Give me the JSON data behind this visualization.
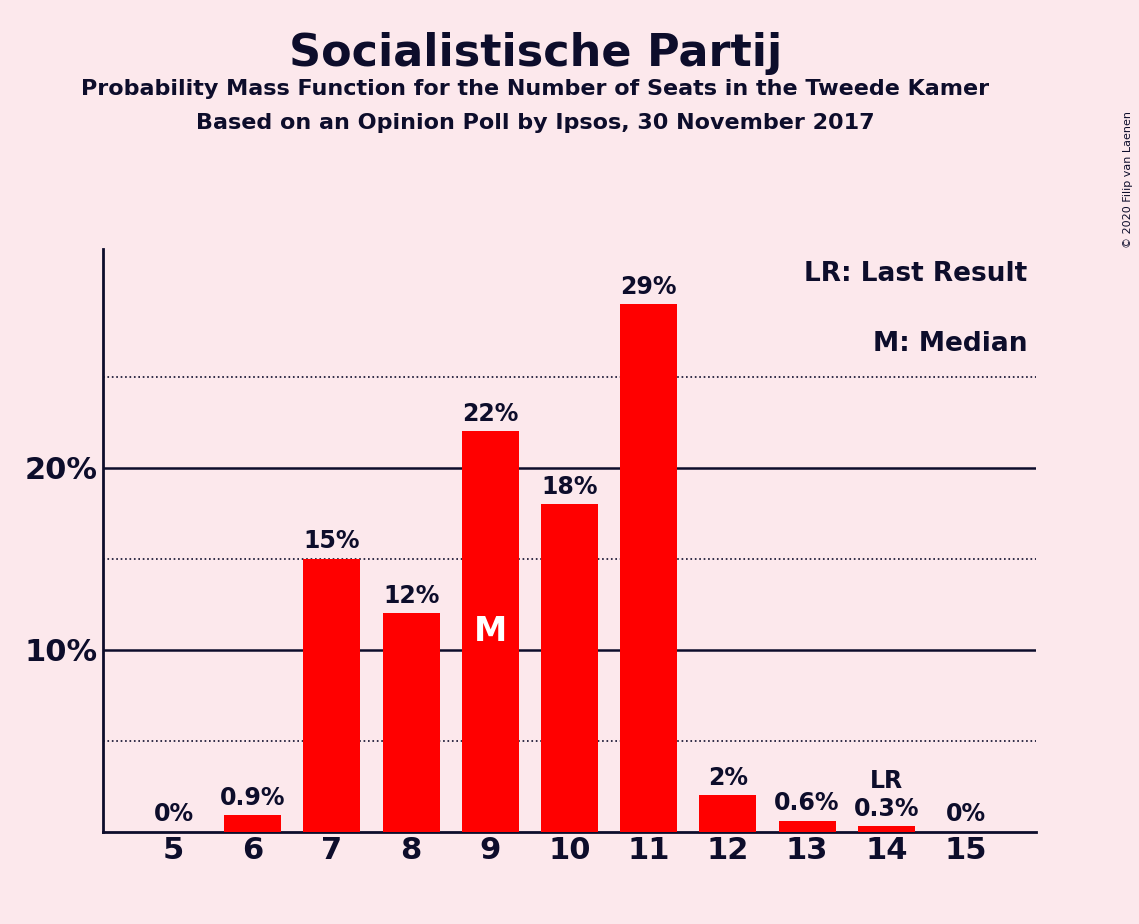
{
  "title": "Socialistische Partij",
  "subtitle1": "Probability Mass Function for the Number of Seats in the Tweede Kamer",
  "subtitle2": "Based on an Opinion Poll by Ipsos, 30 November 2017",
  "copyright": "© 2020 Filip van Laenen",
  "categories": [
    5,
    6,
    7,
    8,
    9,
    10,
    11,
    12,
    13,
    14,
    15
  ],
  "values": [
    0.0,
    0.9,
    15.0,
    12.0,
    22.0,
    18.0,
    29.0,
    2.0,
    0.6,
    0.3,
    0.0
  ],
  "labels": [
    "0%",
    "0.9%",
    "15%",
    "12%",
    "22%",
    "18%",
    "29%",
    "2%",
    "0.6%",
    "0.3%",
    "0%"
  ],
  "bar_color": "#ff0000",
  "background_color": "#fce8ec",
  "text_color": "#0d0d2b",
  "yticks": [
    0,
    10,
    20
  ],
  "ytick_labels": [
    "",
    "10%",
    "20%"
  ],
  "dotted_lines": [
    5,
    15,
    25
  ],
  "solid_lines": [
    10,
    20
  ],
  "ylim": [
    0,
    32
  ],
  "median_bar_cat": 9,
  "lr_bar_cat": 14,
  "legend_lr": "LR: Last Result",
  "legend_m": "M: Median",
  "label_fontsize": 17,
  "tick_fontsize": 22,
  "title_fontsize": 32,
  "subtitle_fontsize": 16,
  "legend_fontsize": 19
}
